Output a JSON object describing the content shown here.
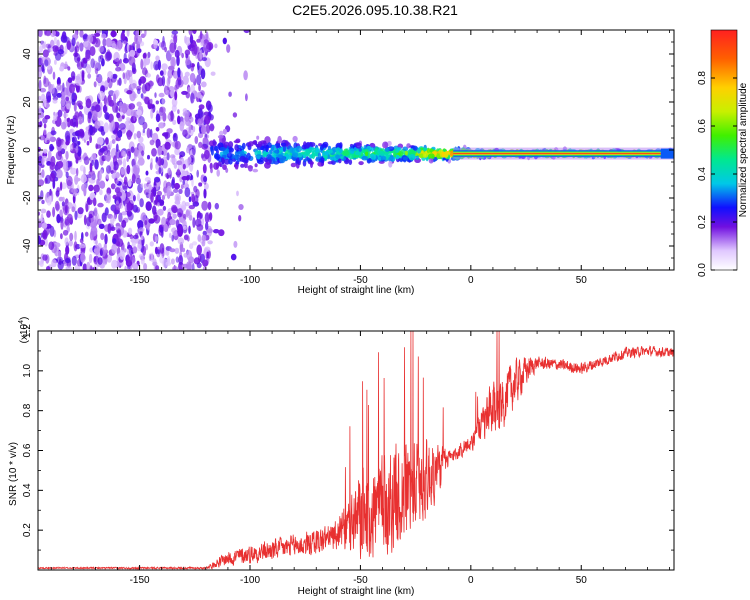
{
  "title": "C2E5.2026.095.10.38.R21",
  "chart_data": [
    {
      "type": "heatmap",
      "name": "spectrogram",
      "xlabel": "Height of straight line (km)",
      "ylabel": "Frequency (Hz)",
      "xlim": [
        -196,
        92
      ],
      "ylim": [
        -50,
        50
      ],
      "xticks": [
        -150,
        -100,
        -50,
        0,
        50
      ],
      "yticks": [
        -40,
        -20,
        0,
        20,
        40
      ],
      "colorbar": {
        "label": "Normalized spectral amplitude",
        "range": [
          0,
          1
        ],
        "ticks": [
          "0.0",
          "0.2",
          "0.4",
          "0.6",
          "0.8"
        ],
        "tick_values": [
          0.0,
          0.2,
          0.4,
          0.6,
          0.8
        ]
      },
      "features": {
        "noise_region_x": [
          -196,
          -118
        ],
        "band_center_freq": -1.5,
        "band_start_x": -118,
        "band_halfwidth_at_start": 12,
        "band_halfwidth_at_end": 2,
        "peak_amplitude": 1.0
      }
    },
    {
      "type": "line",
      "name": "snr",
      "title": "",
      "xlabel": "Height of straight line (km)",
      "ylabel": "SNR (10 * v/v)",
      "scale_label": "(x10",
      "scale_exponent": "4",
      "scale_close": ")",
      "xlim": [
        -196,
        92
      ],
      "ylim": [
        0,
        1.2
      ],
      "xticks": [
        -150,
        -100,
        -50,
        0,
        50
      ],
      "yticks": [
        0.2,
        0.4,
        0.6,
        0.8,
        1.0,
        1.2
      ],
      "ytick_labels": [
        "0.2",
        "0.4",
        "0.6",
        "0.8",
        "1.0",
        "1.2"
      ],
      "series": [
        {
          "name": "SNR",
          "color": "#e83030",
          "envelope_x": [
            -196,
            -120,
            -110,
            -100,
            -90,
            -80,
            -70,
            -60,
            -50,
            -40,
            -30,
            -20,
            -15,
            -10,
            -5,
            0,
            5,
            10,
            15,
            20,
            25,
            30,
            40,
            50,
            60,
            70,
            80,
            92
          ],
          "envelope_y": [
            0.01,
            0.01,
            0.06,
            0.08,
            0.1,
            0.12,
            0.14,
            0.18,
            0.26,
            0.32,
            0.4,
            0.46,
            0.5,
            0.56,
            0.6,
            0.64,
            0.72,
            0.8,
            0.86,
            0.94,
            1.0,
            1.04,
            1.03,
            1.01,
            1.05,
            1.09,
            1.1,
            1.09
          ],
          "noise_amp_x": [
            -196,
            -120,
            -110,
            -60,
            -50,
            -30,
            -20,
            -15,
            -10,
            0,
            10,
            20,
            30,
            92
          ],
          "noise_amp_y": [
            0.004,
            0.006,
            0.05,
            0.09,
            0.3,
            0.35,
            0.25,
            0.18,
            0.05,
            0.05,
            0.18,
            0.15,
            0.04,
            0.03
          ]
        }
      ]
    }
  ]
}
